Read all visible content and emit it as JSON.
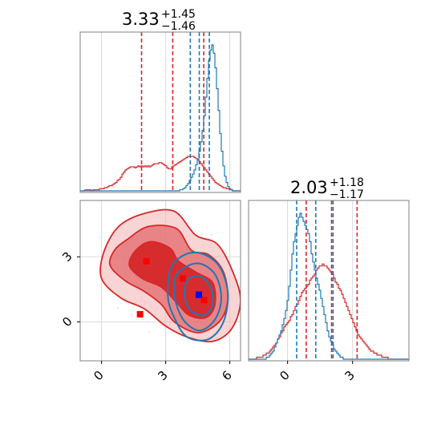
{
  "chart_data": {
    "type": "corner",
    "parameters": [
      {
        "title_value": "3.33",
        "title_plus": "+1.45",
        "title_minus": "−1.46",
        "ticks": [
          0,
          3,
          6
        ],
        "range": [
          -1.0,
          6.5
        ]
      },
      {
        "title_value": "2.03",
        "title_plus": "+1.18",
        "title_minus": "−1.17",
        "ticks": [
          0,
          3
        ],
        "range": [
          -1.8,
          5.6
        ]
      }
    ],
    "series": [
      {
        "color": "#d62728",
        "param1_hist": {
          "start": -1.0,
          "step": 0.075,
          "counts": [
            0,
            0,
            0,
            1,
            1,
            1,
            1,
            0,
            1,
            1,
            1,
            1,
            2,
            2,
            2,
            3,
            3,
            4,
            5,
            5,
            6,
            7,
            8,
            10,
            11,
            13,
            16,
            18,
            20,
            21,
            22,
            23,
            23,
            23,
            22,
            23,
            24,
            23,
            24,
            23,
            24,
            23,
            24,
            23,
            24,
            25,
            26,
            26,
            26,
            27,
            27,
            26,
            25,
            24,
            22,
            21,
            21,
            23,
            24,
            25,
            26,
            27,
            28,
            29,
            30,
            31,
            32,
            33,
            33,
            33,
            33,
            32,
            31,
            30,
            28,
            26,
            24,
            22,
            20,
            18,
            16,
            14,
            12,
            10,
            8,
            7,
            6,
            5,
            4,
            3,
            3,
            2,
            2,
            1,
            1,
            0,
            0,
            0,
            0,
            0
          ]
        },
        "param1_quantiles": [
          1.87,
          3.33,
          4.78
        ],
        "param2_hist": {
          "start": -1.8,
          "step": 0.074,
          "counts": [
            0,
            0,
            0,
            0,
            0,
            1,
            1,
            1,
            1,
            2,
            2,
            3,
            3,
            4,
            5,
            6,
            7,
            8,
            10,
            11,
            13,
            14,
            16,
            17,
            18,
            19,
            21,
            22,
            24,
            26,
            27,
            29,
            31,
            33,
            34,
            35,
            36,
            37,
            39,
            40,
            41,
            42,
            44,
            45,
            46,
            46,
            47,
            46,
            46,
            45,
            44,
            43,
            42,
            40,
            38,
            37,
            35,
            34,
            32,
            30,
            28,
            26,
            24,
            22,
            20,
            18,
            16,
            14,
            12,
            11,
            10,
            9,
            8,
            7,
            6,
            5,
            4,
            4,
            3,
            3,
            2,
            2,
            2,
            1,
            1,
            1,
            1,
            0,
            0,
            0,
            0,
            0,
            0,
            0,
            0,
            0,
            0,
            0,
            0,
            0
          ]
        },
        "param2_quantiles": [
          0.86,
          2.03,
          3.21
        ],
        "samples": [
          {
            "x": 2.1,
            "y": 2.8
          },
          {
            "x": 3.8,
            "y": 2.0
          },
          {
            "x": 1.8,
            "y": 0.35
          },
          {
            "x": 4.8,
            "y": 1.0
          }
        ],
        "contours_2d": [
          {
            "level": 0.3,
            "fill": "#d62728",
            "alpha": 0.95,
            "points": [
              [
                1.6,
                3.3
              ],
              [
                2.3,
                3.7
              ],
              [
                3.2,
                3.4
              ],
              [
                3.6,
                2.8
              ],
              [
                4.4,
                2.3
              ],
              [
                5.2,
                1.8
              ],
              [
                5.3,
                0.8
              ],
              [
                4.9,
                0.2
              ],
              [
                4.1,
                0.3
              ],
              [
                3.5,
                0.9
              ],
              [
                2.8,
                1.6
              ],
              [
                1.9,
                2.0
              ],
              [
                1.3,
                2.6
              ]
            ]
          },
          {
            "level": 0.6,
            "fill": "#e36365",
            "alpha": 0.7,
            "points": [
              [
                1.2,
                3.8
              ],
              [
                2.2,
                4.4
              ],
              [
                3.5,
                4.3
              ],
              [
                4.2,
                3.3
              ],
              [
                5.0,
                3.1
              ],
              [
                5.7,
                2.3
              ],
              [
                5.9,
                1.0
              ],
              [
                5.5,
                0.0
              ],
              [
                4.5,
                -0.5
              ],
              [
                3.4,
                0.0
              ],
              [
                2.8,
                0.8
              ],
              [
                2.0,
                1.4
              ],
              [
                1.1,
                1.9
              ],
              [
                0.4,
                2.6
              ],
              [
                0.6,
                3.3
              ]
            ]
          },
          {
            "level": 0.9,
            "fill": "#f3b7b8",
            "alpha": 0.6,
            "points": [
              [
                0.8,
                4.4
              ],
              [
                2.0,
                5.0
              ],
              [
                3.4,
                5.1
              ],
              [
                4.4,
                4.0
              ],
              [
                5.4,
                3.6
              ],
              [
                6.1,
                2.4
              ],
              [
                6.5,
                1.0
              ],
              [
                6.1,
                -0.3
              ],
              [
                5.2,
                -0.9
              ],
              [
                4.0,
                -0.7
              ],
              [
                3.0,
                -0.2
              ],
              [
                2.0,
                0.6
              ],
              [
                0.9,
                1.1
              ],
              [
                0.0,
                2.0
              ],
              [
                0.1,
                3.2
              ]
            ]
          }
        ]
      },
      {
        "color": "#1f77b4",
        "param1_hist": {
          "start": -1.0,
          "step": 0.075,
          "counts": [
            0,
            0,
            0,
            0,
            0,
            0,
            0,
            0,
            0,
            0,
            0,
            0,
            0,
            0,
            0,
            0,
            0,
            0,
            0,
            0,
            0,
            0,
            0,
            0,
            0,
            0,
            0,
            0,
            0,
            0,
            0,
            0,
            0,
            0,
            0,
            0,
            0,
            0,
            0,
            0,
            0,
            0,
            0,
            0,
            0,
            0,
            0,
            0,
            0,
            0,
            0,
            0,
            0,
            0,
            0,
            0,
            0,
            0,
            0,
            0,
            0,
            0,
            1,
            1,
            2,
            3,
            5,
            7,
            10,
            13,
            16,
            20,
            25,
            30,
            38,
            47,
            58,
            72,
            90,
            108,
            125,
            135,
            140,
            132,
            118,
            98,
            77,
            55,
            38,
            24,
            14,
            8,
            4,
            2,
            1,
            0,
            0,
            0,
            0,
            0
          ]
        },
        "param1_quantiles": [
          4.15,
          4.57,
          5.04
        ],
        "param2_hist": {
          "start": -1.8,
          "step": 0.074,
          "counts": [
            0,
            0,
            0,
            0,
            0,
            0,
            0,
            0,
            0,
            0,
            0,
            1,
            1,
            2,
            3,
            4,
            6,
            8,
            10,
            12,
            14,
            17,
            20,
            24,
            29,
            36,
            44,
            52,
            58,
            62,
            66,
            70,
            72,
            70,
            68,
            66,
            64,
            62,
            58,
            52,
            48,
            44,
            40,
            37,
            34,
            30,
            26,
            22,
            18,
            14,
            11,
            9,
            7,
            5,
            4,
            3,
            2,
            1,
            1,
            0,
            0,
            0,
            0,
            0,
            0,
            0,
            0,
            0,
            0,
            0,
            0,
            0,
            0,
            0,
            0,
            0,
            0,
            0,
            0,
            0,
            0,
            0,
            0,
            0,
            0,
            0,
            0,
            0,
            0,
            0,
            0,
            0,
            0,
            0,
            0,
            0,
            0,
            0,
            0,
            0
          ]
        },
        "param2_quantiles": [
          0.42,
          1.3,
          2.1
        ],
        "samples": [
          {
            "x": 4.55,
            "y": 1.25
          }
        ],
        "contours_2d": [
          {
            "level": 0.3,
            "points": [
              [
                4.0,
                1.9
              ],
              [
                4.6,
                2.1
              ],
              [
                5.1,
                1.6
              ],
              [
                5.2,
                0.8
              ],
              [
                4.8,
                0.3
              ],
              [
                4.2,
                0.5
              ],
              [
                3.9,
                1.1
              ]
            ]
          },
          {
            "level": 0.6,
            "points": [
              [
                3.6,
                2.3
              ],
              [
                4.5,
                2.7
              ],
              [
                5.3,
                2.2
              ],
              [
                5.6,
                1.1
              ],
              [
                5.3,
                0.1
              ],
              [
                4.6,
                -0.4
              ],
              [
                3.9,
                0.0
              ],
              [
                3.5,
                0.8
              ],
              [
                3.4,
                1.6
              ]
            ]
          },
          {
            "level": 0.9,
            "points": [
              [
                3.3,
                2.6
              ],
              [
                4.3,
                3.2
              ],
              [
                5.4,
                2.7
              ],
              [
                5.9,
                1.4
              ],
              [
                5.7,
                0.0
              ],
              [
                5.0,
                -0.8
              ],
              [
                4.0,
                -0.7
              ],
              [
                3.4,
                0.2
              ],
              [
                3.1,
                1.2
              ]
            ]
          }
        ]
      }
    ],
    "grid": true
  }
}
